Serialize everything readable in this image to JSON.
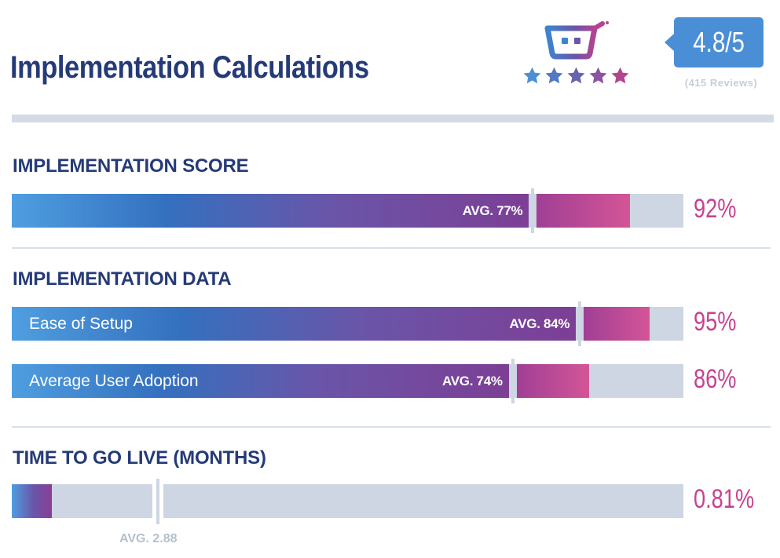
{
  "header": {
    "title": "Implementation Calculations",
    "rating": "4.8/5",
    "reviews": "(415 Reviews)",
    "stars": 5
  },
  "colors": {
    "navy": "#253a78",
    "accent_pink": "#c6438f",
    "badge_blue": "#4a8fd6",
    "track_gray": "#cdd6e2"
  },
  "chart_data": [
    {
      "type": "bar",
      "title": "IMPLEMENTATION SCORE",
      "unit": "%",
      "xlim": [
        0,
        100
      ],
      "bars": [
        {
          "label": "",
          "value": 92,
          "value_label": "92%",
          "avg": 77,
          "avg_label": "AVG. 77%"
        }
      ]
    },
    {
      "type": "bar",
      "title": "IMPLEMENTATION DATA",
      "unit": "%",
      "xlim": [
        0,
        100
      ],
      "bars": [
        {
          "label": "Ease of Setup",
          "value": 95,
          "value_label": "95%",
          "avg": 84,
          "avg_label": "AVG. 84%"
        },
        {
          "label": "Average User Adoption",
          "value": 86,
          "value_label": "86%",
          "avg": 74,
          "avg_label": "AVG. 74%"
        }
      ]
    },
    {
      "type": "bar",
      "title": "TIME TO GO LIVE (MONTHS)",
      "unit": "months",
      "xlim": [
        0,
        13.5
      ],
      "bars": [
        {
          "label": "",
          "value": 0.81,
          "value_label": "0.81%",
          "avg": 2.88,
          "avg_label": "AVG. 2.88"
        }
      ]
    }
  ]
}
